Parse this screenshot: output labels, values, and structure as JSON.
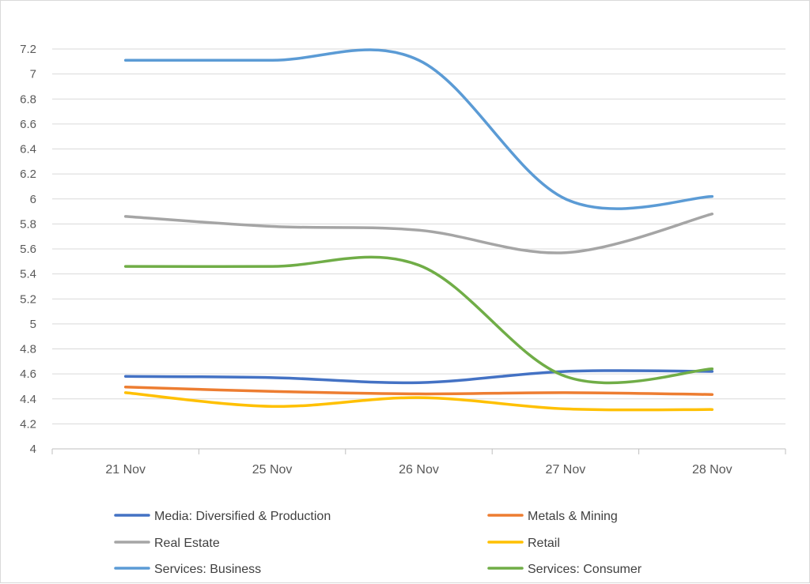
{
  "chart_data": {
    "type": "line",
    "smooth": true,
    "title": "",
    "xlabel": "",
    "ylabel": "",
    "categories": [
      "21 Nov",
      "25 Nov",
      "26 Nov",
      "27 Nov",
      "28 Nov"
    ],
    "ylim": [
      4,
      7.2
    ],
    "ytick_step": 0.2,
    "yticks": [
      "4",
      "4.2",
      "4.4",
      "4.6",
      "4.8",
      "5",
      "5.2",
      "5.4",
      "5.6",
      "5.8",
      "6",
      "6.2",
      "6.4",
      "6.6",
      "6.8",
      "7",
      "7.2"
    ],
    "grid": true,
    "legend_position": "bottom",
    "series": [
      {
        "name": "Media: Diversified & Production",
        "color": "#4472c4",
        "values": [
          4.58,
          4.57,
          4.53,
          4.62,
          4.62
        ]
      },
      {
        "name": "Metals & Mining",
        "color": "#ed7d31",
        "values": [
          4.495,
          4.46,
          4.44,
          4.45,
          4.435
        ]
      },
      {
        "name": "Real Estate",
        "color": "#a5a5a5",
        "values": [
          5.86,
          5.78,
          5.75,
          5.57,
          5.88
        ]
      },
      {
        "name": "Retail",
        "color": "#ffc000",
        "values": [
          4.45,
          4.34,
          4.41,
          4.32,
          4.315
        ]
      },
      {
        "name": "Services: Business",
        "color": "#5b9bd5",
        "values": [
          7.11,
          7.11,
          7.11,
          6.0,
          6.02
        ]
      },
      {
        "name": "Services: Consumer",
        "color": "#70ad47",
        "values": [
          5.46,
          5.46,
          5.47,
          4.58,
          4.64
        ]
      }
    ]
  }
}
